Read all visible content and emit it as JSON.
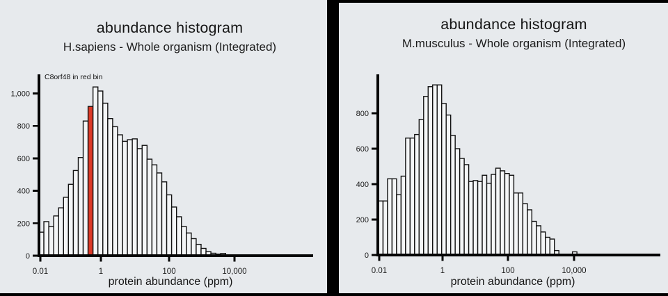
{
  "page": {
    "background": "#e7eaed",
    "frame_color": "#000000",
    "text_color": "#1a1a1a"
  },
  "chart_data": [
    {
      "type": "bar",
      "panel": "left",
      "organism": "H.sapiens",
      "title": "abundance histogram",
      "subtitle": "H.sapiens - Whole organism (Integrated)",
      "annotation": "C8orf48 in red bin",
      "xlabel": "protein abundance (ppm)",
      "x_scale": "log",
      "x_tick_labels": [
        "0.01",
        "1",
        "100",
        "10,000"
      ],
      "x_tick_values": [
        0.01,
        1,
        100,
        10000
      ],
      "y_ticks": [
        {
          "value": 0,
          "label": "0"
        },
        {
          "value": 200,
          "label": "200"
        },
        {
          "value": 400,
          "label": "400"
        },
        {
          "value": 600,
          "label": "600"
        },
        {
          "value": 800,
          "label": "800"
        },
        {
          "value": 1000,
          "label": "1,000"
        }
      ],
      "ylim": [
        0,
        1120
      ],
      "bin_start_ppm": 0.01,
      "bin_width_decades": 0.152,
      "values": [
        145,
        210,
        180,
        245,
        295,
        360,
        440,
        525,
        605,
        830,
        920,
        1040,
        1015,
        940,
        845,
        795,
        745,
        705,
        715,
        720,
        660,
        680,
        595,
        560,
        510,
        455,
        375,
        300,
        240,
        180,
        140,
        105,
        70,
        45,
        25,
        15,
        10,
        14
      ],
      "highlight_bin_index": 10,
      "highlight_value": 920,
      "highlight_color": "#dd3a28",
      "bar_fill": "#f4f6f7",
      "bar_stroke": "#111111",
      "grid": false,
      "legend": "none"
    },
    {
      "type": "bar",
      "panel": "right",
      "organism": "M.musculus",
      "title": "abundance histogram",
      "subtitle": "M.musculus - Whole organism (Integrated)",
      "annotation": "",
      "xlabel": "protein abundance (ppm)",
      "x_scale": "log",
      "x_tick_labels": [
        "0.01",
        "1",
        "100",
        "10,000"
      ],
      "x_tick_values": [
        0.01,
        1,
        100,
        10000
      ],
      "y_ticks": [
        {
          "value": 0,
          "label": "0"
        },
        {
          "value": 200,
          "label": "200"
        },
        {
          "value": 400,
          "label": "400"
        },
        {
          "value": 600,
          "label": "600"
        },
        {
          "value": 800,
          "label": "800"
        }
      ],
      "ylim": [
        0,
        1020
      ],
      "bin_start_ppm": 0.01,
      "bin_width_decades": 0.139,
      "values": [
        305,
        305,
        430,
        430,
        340,
        445,
        660,
        660,
        680,
        765,
        895,
        950,
        960,
        960,
        855,
        790,
        675,
        600,
        545,
        510,
        415,
        420,
        415,
        450,
        405,
        455,
        490,
        475,
        460,
        450,
        350,
        350,
        290,
        255,
        190,
        165,
        130,
        100,
        90,
        25,
        0,
        0,
        0,
        18
      ],
      "highlight_bin_index": -1,
      "highlight_color": "#dd3a28",
      "bar_fill": "#f4f6f7",
      "bar_stroke": "#111111",
      "grid": false,
      "legend": "none"
    }
  ]
}
